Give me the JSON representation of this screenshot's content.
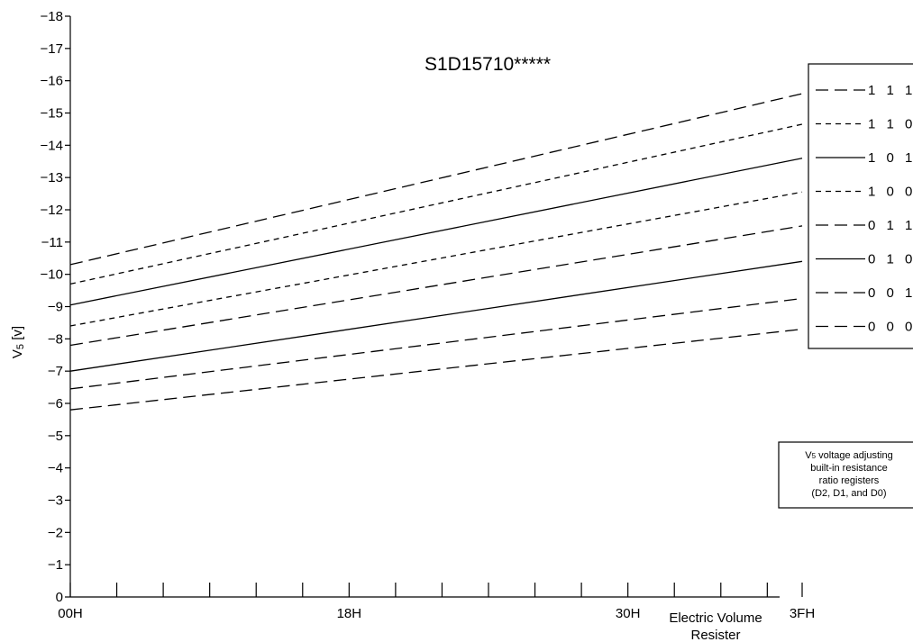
{
  "chart_data": {
    "type": "line",
    "title": "S1D15710*****",
    "xlabel_lines": [
      "Electric Volume",
      "Resister"
    ],
    "ylabel": "V5 [v]",
    "xlim": [
      0,
      63
    ],
    "ylim": [
      0,
      -18
    ],
    "x_ticks": [
      {
        "value": 0,
        "label": "00H"
      },
      {
        "value": 24,
        "label": "18H"
      },
      {
        "value": 48,
        "label": "30H"
      },
      {
        "value": 63,
        "label": "3FH"
      }
    ],
    "x_minor_ticks": [
      4,
      8,
      12,
      16,
      20,
      28,
      32,
      36,
      40,
      44,
      52,
      56,
      60
    ],
    "y_ticks": [
      {
        "value": 0,
        "label": "0"
      },
      {
        "value": -1,
        "label": "−1"
      },
      {
        "value": -2,
        "label": "−2"
      },
      {
        "value": -3,
        "label": "−3"
      },
      {
        "value": -4,
        "label": "−4"
      },
      {
        "value": -5,
        "label": "−5"
      },
      {
        "value": -6,
        "label": "−6"
      },
      {
        "value": -7,
        "label": "−7"
      },
      {
        "value": -8,
        "label": "−8"
      },
      {
        "value": -9,
        "label": "−9"
      },
      {
        "value": -10,
        "label": "−10"
      },
      {
        "value": -11,
        "label": "−11"
      },
      {
        "value": -12,
        "label": "−12"
      },
      {
        "value": -13,
        "label": "−13"
      },
      {
        "value": -14,
        "label": "−14"
      },
      {
        "value": -15,
        "label": "−15"
      },
      {
        "value": -16,
        "label": "−16"
      },
      {
        "value": -17,
        "label": "−17"
      },
      {
        "value": -18,
        "label": "−18"
      }
    ],
    "legend_position": "right",
    "series": [
      {
        "name": "1 1 1",
        "style": "long-dash",
        "x": [
          0,
          63
        ],
        "y": [
          -10.3,
          -15.6
        ]
      },
      {
        "name": "1 1 0",
        "style": "short-dash",
        "x": [
          0,
          63
        ],
        "y": [
          -9.7,
          -14.65
        ]
      },
      {
        "name": "1 0 1",
        "style": "solid",
        "x": [
          0,
          63
        ],
        "y": [
          -9.05,
          -13.6
        ]
      },
      {
        "name": "1 0 0",
        "style": "short-dash",
        "x": [
          0,
          63
        ],
        "y": [
          -8.4,
          -12.55
        ]
      },
      {
        "name": "0 1 1",
        "style": "long-dash",
        "x": [
          0,
          63
        ],
        "y": [
          -7.8,
          -11.5
        ]
      },
      {
        "name": "0 1 0",
        "style": "solid",
        "x": [
          0,
          63
        ],
        "y": [
          -7.0,
          -10.4
        ]
      },
      {
        "name": "0 0 1",
        "style": "long-dash",
        "x": [
          0,
          63
        ],
        "y": [
          -6.45,
          -9.25
        ]
      },
      {
        "name": "0 0 0",
        "style": "long-dash",
        "x": [
          0,
          63
        ],
        "y": [
          -5.8,
          -8.3
        ]
      }
    ],
    "legend_note": [
      "V5 voltage adjusting",
      "built-in resistance",
      "ratio registers",
      "(D2, D1, and D0)"
    ]
  }
}
